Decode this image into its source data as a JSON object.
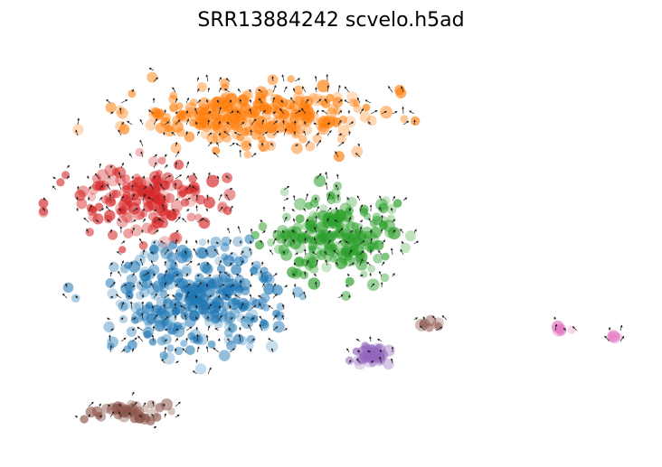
{
  "title": "SRR13884242 scvelo.h5ad",
  "chart_data": {
    "type": "scatter",
    "title": "SRR13884242 scvelo.h5ad",
    "xlabel": "",
    "ylabel": "",
    "axes_visible": false,
    "grid": false,
    "legend": "none",
    "overlay": "velocity arrows (small black arrows on a regular grid)",
    "xlim": [
      0,
      100
    ],
    "ylim": [
      0,
      100
    ],
    "clusters": [
      {
        "id": "orange",
        "color": "#ff7f0e",
        "center": [
          37,
          84
        ],
        "spread": [
          17,
          6
        ],
        "points": 260,
        "seed": 11
      },
      {
        "id": "red",
        "color": "#d62728",
        "center": [
          17,
          62
        ],
        "spread": [
          11,
          7
        ],
        "points": 160,
        "seed": 23
      },
      {
        "id": "blue",
        "color": "#1f77b4",
        "center": [
          27,
          37
        ],
        "spread": [
          12,
          11
        ],
        "points": 300,
        "seed": 37
      },
      {
        "id": "green",
        "color": "#2ca02c",
        "center": [
          50,
          53
        ],
        "spread": [
          9,
          9
        ],
        "points": 210,
        "seed": 41
      },
      {
        "id": "purple",
        "color": "#9467bd",
        "center": [
          56,
          22
        ],
        "spread": [
          3.2,
          2.6
        ],
        "points": 45,
        "seed": 53
      },
      {
        "id": "brown",
        "color": "#8c564b",
        "center": [
          15,
          7
        ],
        "spread": [
          7,
          2
        ],
        "points": 40,
        "seed": 61
      },
      {
        "id": "brown-small",
        "color": "#8c564b",
        "center": [
          65.5,
          30
        ],
        "spread": [
          1.6,
          0.9
        ],
        "points": 8,
        "seed": 67
      },
      {
        "id": "pink",
        "color": "#e377c2",
        "center": [
          88,
          29
        ],
        "spread": [
          1.2,
          0.8
        ],
        "points": 6,
        "seed": 71
      },
      {
        "id": "pink-far",
        "color": "#e377c2",
        "center": [
          97,
          27
        ],
        "spread": [
          0.8,
          0.6
        ],
        "points": 4,
        "seed": 73
      }
    ]
  }
}
